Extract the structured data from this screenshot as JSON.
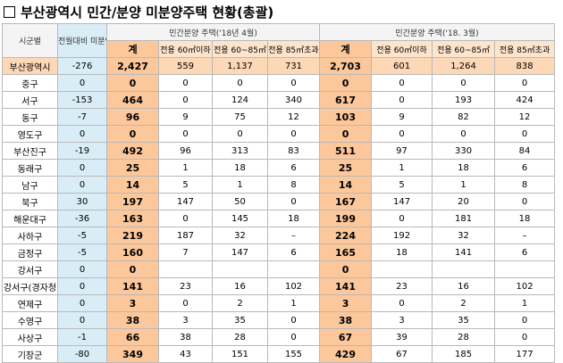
{
  "header": {
    "title": "부산광역시 민간/분양 미분양주택 현황(총괄)"
  },
  "table": {
    "corner": "시군별",
    "change": "전월대비 미분양 증감현황",
    "groups": [
      "민간분양 주택('18년 4월)",
      "민간분양 주택('18. 3월)"
    ],
    "subheaders": [
      [
        "계",
        "전용 60㎡이하",
        "전용 60~85㎡",
        "전용 85㎡초과"
      ],
      [
        "계",
        "전용 60㎡이하",
        "전용 60~85㎡",
        "전용 85㎡초과"
      ]
    ],
    "rows": [
      [
        "부산광역시",
        "-276",
        "2,427",
        "559",
        "1,137",
        "731",
        "2,703",
        "601",
        "1,264",
        "838"
      ],
      [
        "중구",
        "0",
        "0",
        "0",
        "0",
        "0",
        "0",
        "0",
        "0",
        "0"
      ],
      [
        "서구",
        "-153",
        "464",
        "0",
        "124",
        "340",
        "617",
        "0",
        "193",
        "424"
      ],
      [
        "동구",
        "-7",
        "96",
        "9",
        "75",
        "12",
        "103",
        "9",
        "82",
        "12"
      ],
      [
        "영도구",
        "0",
        "0",
        "0",
        "0",
        "0",
        "0",
        "0",
        "0",
        "0"
      ],
      [
        "부산진구",
        "-19",
        "492",
        "96",
        "313",
        "83",
        "511",
        "97",
        "330",
        "84"
      ],
      [
        "동래구",
        "0",
        "25",
        "1",
        "18",
        "6",
        "25",
        "1",
        "18",
        "6"
      ],
      [
        "남구",
        "0",
        "14",
        "5",
        "1",
        "8",
        "14",
        "5",
        "1",
        "8"
      ],
      [
        "북구",
        "30",
        "197",
        "147",
        "50",
        "0",
        "167",
        "147",
        "20",
        "0"
      ],
      [
        "해운대구",
        "-36",
        "163",
        "0",
        "145",
        "18",
        "199",
        "0",
        "181",
        "18"
      ],
      [
        "사하구",
        "-5",
        "219",
        "187",
        "32",
        "–",
        "224",
        "192",
        "32",
        "–"
      ],
      [
        "금정구",
        "-5",
        "160",
        "7",
        "147",
        "6",
        "165",
        "18",
        "141",
        "6"
      ],
      [
        "강서구",
        "0",
        "0",
        null,
        null,
        null,
        "0",
        null,
        null,
        null
      ],
      [
        "강서구(경자청",
        "0",
        "141",
        "23",
        "16",
        "102",
        "141",
        "23",
        "16",
        "102"
      ],
      [
        "연제구",
        "0",
        "3",
        "0",
        "2",
        "1",
        "3",
        "0",
        "2",
        "1"
      ],
      [
        "수영구",
        "0",
        "38",
        "3",
        "35",
        "0",
        "38",
        "3",
        "35",
        "0"
      ],
      [
        "사상구",
        "-1",
        "66",
        "38",
        "28",
        "0",
        "67",
        "39",
        "28",
        "0"
      ],
      [
        "기장군",
        "-80",
        "349",
        "43",
        "151",
        "155",
        "429",
        "67",
        "185",
        "177"
      ]
    ]
  }
}
